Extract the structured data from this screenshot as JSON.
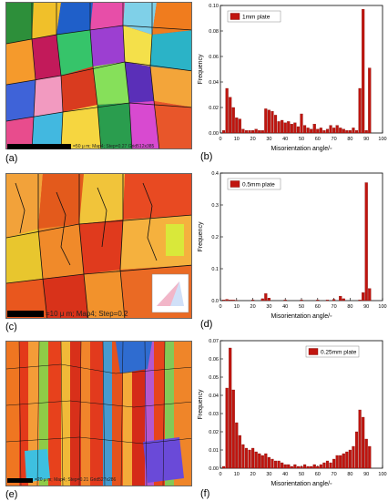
{
  "colors": {
    "bar_fill": "#c0150f",
    "bar_stroke": "#7a0a05",
    "axis": "#000000"
  },
  "panels": [
    {
      "image_label": "(a)",
      "scale_text": "=50 μ m; Map4; Step=0.27    Grid512x385",
      "chart_label": "(b)"
    },
    {
      "image_label": "(c)",
      "scale_text": "=10 μ m; Map4; Step=0.2",
      "chart_label": "(d)"
    },
    {
      "image_label": "(e)",
      "scale_text": "=20 μ m; Map4; Step=0.21    Grid527x286",
      "chart_label": "(f)"
    }
  ],
  "chart_data": [
    {
      "type": "bar",
      "legend": "1mm plate",
      "legend_position": "top-left",
      "xlabel": "Misorientation angle/◦",
      "ylabel": "Frequency",
      "xlim": [
        0,
        100
      ],
      "ylim": [
        0,
        0.1
      ],
      "xticks": [
        "0",
        "10",
        "20",
        "30",
        "40",
        "50",
        "60",
        "70",
        "80",
        "90",
        "100"
      ],
      "yticks": [
        "0.00",
        "0.02",
        "0.04",
        "0.06",
        "0.08",
        "0.10"
      ],
      "bin_width": 2,
      "x": [
        2,
        4,
        6,
        8,
        10,
        12,
        14,
        16,
        18,
        20,
        22,
        24,
        26,
        28,
        30,
        32,
        34,
        36,
        38,
        40,
        42,
        44,
        46,
        48,
        50,
        52,
        54,
        56,
        58,
        60,
        62,
        64,
        66,
        68,
        70,
        72,
        74,
        76,
        78,
        80,
        82,
        84,
        86,
        88,
        90,
        92
      ],
      "values": [
        0.002,
        0.035,
        0.028,
        0.02,
        0.012,
        0.011,
        0.003,
        0.002,
        0.002,
        0.002,
        0.003,
        0.002,
        0.002,
        0.019,
        0.018,
        0.017,
        0.014,
        0.009,
        0.01,
        0.008,
        0.009,
        0.007,
        0.008,
        0.005,
        0.015,
        0.006,
        0.004,
        0.003,
        0.007,
        0.003,
        0.004,
        0.002,
        0.003,
        0.006,
        0.004,
        0.006,
        0.004,
        0.003,
        0.002,
        0.002,
        0.004,
        0.002,
        0.035,
        0.097,
        0.002,
        0.051
      ]
    },
    {
      "type": "bar",
      "legend": "0.5mm plate",
      "legend_position": "top-left",
      "xlabel": "Misorientation angle/◦",
      "ylabel": "Frequency",
      "xlim": [
        0,
        100
      ],
      "ylim": [
        0,
        0.4
      ],
      "xticks": [
        "0",
        "10",
        "20",
        "30",
        "40",
        "50",
        "60",
        "70",
        "80",
        "90",
        "100"
      ],
      "yticks": [
        "0.0",
        "0.1",
        "0.2",
        "0.3",
        "0.4"
      ],
      "bin_width": 2,
      "x": [
        2,
        4,
        6,
        8,
        10,
        20,
        26,
        28,
        30,
        40,
        50,
        60,
        66,
        70,
        74,
        76,
        86,
        88,
        90,
        92
      ],
      "values": [
        0.002,
        0.004,
        0.002,
        0.002,
        0.001,
        0.002,
        0.006,
        0.022,
        0.008,
        0.002,
        0.002,
        0.002,
        0.002,
        0.004,
        0.014,
        0.006,
        0.002,
        0.025,
        0.37,
        0.038
      ]
    },
    {
      "type": "bar",
      "legend": "0.25mm plate",
      "legend_position": "top-right",
      "xlabel": "Misorientation angle/◦",
      "ylabel": "Frequency",
      "xlim": [
        0,
        100
      ],
      "ylim": [
        0,
        0.07
      ],
      "xticks": [
        "0",
        "10",
        "20",
        "30",
        "40",
        "50",
        "60",
        "70",
        "80",
        "90",
        "100"
      ],
      "yticks": [
        "0.00",
        "0.01",
        "0.02",
        "0.03",
        "0.04",
        "0.05",
        "0.06",
        "0.07"
      ],
      "bin_width": 2,
      "x": [
        2,
        4,
        6,
        8,
        10,
        12,
        14,
        16,
        18,
        20,
        22,
        24,
        26,
        28,
        30,
        32,
        34,
        36,
        38,
        40,
        42,
        44,
        46,
        48,
        50,
        52,
        54,
        56,
        58,
        60,
        62,
        64,
        66,
        68,
        70,
        72,
        74,
        76,
        78,
        80,
        82,
        84,
        86,
        88,
        90,
        92
      ],
      "values": [
        0.001,
        0.044,
        0.066,
        0.043,
        0.025,
        0.018,
        0.013,
        0.011,
        0.01,
        0.011,
        0.009,
        0.008,
        0.007,
        0.008,
        0.006,
        0.005,
        0.004,
        0.004,
        0.003,
        0.002,
        0.002,
        0.001,
        0.002,
        0.001,
        0.001,
        0.002,
        0.001,
        0.001,
        0.002,
        0.001,
        0.002,
        0.003,
        0.004,
        0.003,
        0.005,
        0.007,
        0.007,
        0.008,
        0.009,
        0.01,
        0.012,
        0.02,
        0.032,
        0.028,
        0.016,
        0.012
      ]
    }
  ]
}
